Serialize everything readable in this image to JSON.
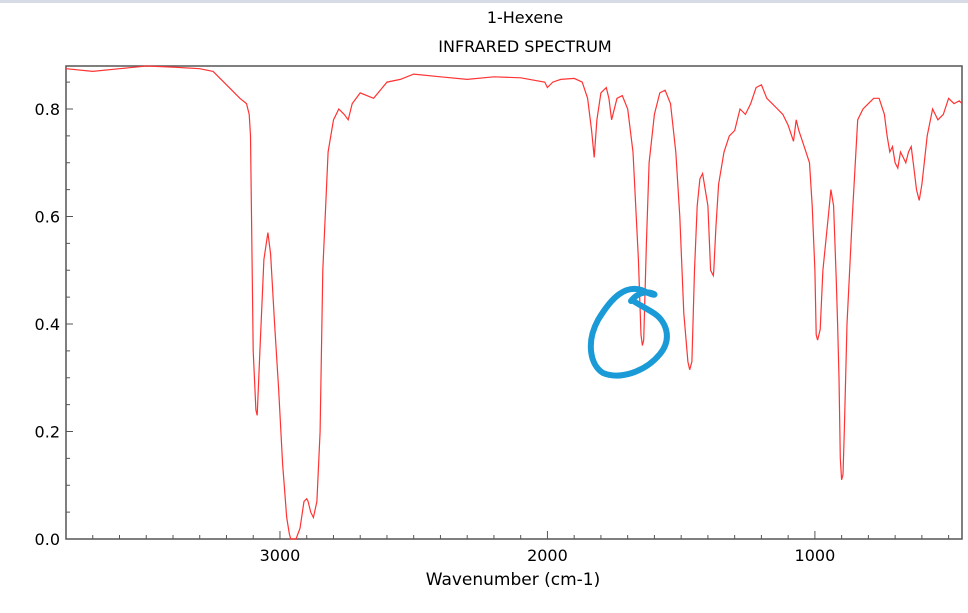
{
  "chart_data": {
    "type": "line",
    "title": "1-Hexene",
    "subtitle": "INFRARED SPECTRUM",
    "xlabel": "Wavenumber (cm-1)",
    "ylabel": "",
    "xlim": [
      3800,
      450
    ],
    "ylim": [
      0,
      0.88
    ],
    "x_ticks": [
      3000,
      2000,
      1000
    ],
    "y_ticks": [
      0.0,
      0.2,
      0.4,
      0.6,
      0.8
    ],
    "grid": false,
    "line_color": "#ff3333",
    "annotation_color": "#1a9ad6",
    "series": [
      {
        "x": [
          3800,
          3700,
          3600,
          3500,
          3400,
          3300,
          3250,
          3200,
          3150,
          3125,
          3115,
          3110,
          3100,
          3090,
          3085,
          3075,
          3060,
          3045,
          3035,
          3020,
          3005,
          2990,
          2975,
          2965,
          2960,
          2950,
          2940,
          2925,
          2910,
          2900,
          2895,
          2885,
          2875,
          2862,
          2850,
          2840,
          2820,
          2800,
          2780,
          2760,
          2745,
          2730,
          2700,
          2650,
          2600,
          2550,
          2500,
          2400,
          2300,
          2200,
          2100,
          2010,
          2000,
          1980,
          1950,
          1900,
          1870,
          1850,
          1835,
          1825,
          1815,
          1800,
          1780,
          1770,
          1760,
          1740,
          1720,
          1700,
          1680,
          1660,
          1650,
          1645,
          1640,
          1630,
          1620,
          1600,
          1580,
          1560,
          1540,
          1520,
          1505,
          1490,
          1475,
          1468,
          1460,
          1450,
          1440,
          1430,
          1420,
          1400,
          1390,
          1380,
          1378,
          1370,
          1360,
          1340,
          1320,
          1300,
          1280,
          1260,
          1240,
          1220,
          1200,
          1180,
          1160,
          1140,
          1120,
          1100,
          1080,
          1070,
          1060,
          1040,
          1020,
          1010,
          1000,
          995,
          990,
          980,
          970,
          960,
          950,
          940,
          930,
          920,
          915,
          910,
          905,
          900,
          895,
          890,
          880,
          860,
          840,
          820,
          800,
          780,
          760,
          740,
          730,
          720,
          710,
          700,
          690,
          680,
          670,
          660,
          650,
          640,
          630,
          620,
          610,
          600,
          580,
          560,
          540,
          520,
          500,
          480,
          460,
          450
        ],
        "y": [
          0.875,
          0.87,
          0.875,
          0.88,
          0.878,
          0.875,
          0.87,
          0.845,
          0.82,
          0.81,
          0.79,
          0.75,
          0.35,
          0.24,
          0.23,
          0.35,
          0.52,
          0.57,
          0.53,
          0.4,
          0.28,
          0.14,
          0.04,
          0.01,
          0.0,
          0.0,
          0.0,
          0.02,
          0.07,
          0.075,
          0.07,
          0.05,
          0.04,
          0.07,
          0.2,
          0.5,
          0.72,
          0.78,
          0.8,
          0.79,
          0.78,
          0.81,
          0.83,
          0.82,
          0.85,
          0.855,
          0.865,
          0.86,
          0.855,
          0.86,
          0.858,
          0.85,
          0.84,
          0.85,
          0.855,
          0.857,
          0.85,
          0.82,
          0.76,
          0.71,
          0.78,
          0.83,
          0.84,
          0.82,
          0.78,
          0.82,
          0.825,
          0.8,
          0.72,
          0.52,
          0.38,
          0.36,
          0.37,
          0.55,
          0.7,
          0.79,
          0.83,
          0.835,
          0.81,
          0.72,
          0.6,
          0.42,
          0.33,
          0.315,
          0.33,
          0.5,
          0.62,
          0.67,
          0.68,
          0.62,
          0.5,
          0.49,
          0.5,
          0.58,
          0.66,
          0.72,
          0.75,
          0.76,
          0.8,
          0.79,
          0.81,
          0.84,
          0.845,
          0.82,
          0.81,
          0.8,
          0.79,
          0.77,
          0.74,
          0.78,
          0.76,
          0.73,
          0.7,
          0.62,
          0.5,
          0.38,
          0.37,
          0.39,
          0.5,
          0.55,
          0.6,
          0.65,
          0.62,
          0.48,
          0.4,
          0.3,
          0.15,
          0.11,
          0.12,
          0.2,
          0.4,
          0.6,
          0.78,
          0.8,
          0.81,
          0.82,
          0.82,
          0.79,
          0.75,
          0.72,
          0.73,
          0.7,
          0.69,
          0.72,
          0.71,
          0.7,
          0.72,
          0.73,
          0.69,
          0.65,
          0.63,
          0.66,
          0.75,
          0.8,
          0.78,
          0.79,
          0.82,
          0.81,
          0.815,
          0.81
        ]
      }
    ]
  }
}
